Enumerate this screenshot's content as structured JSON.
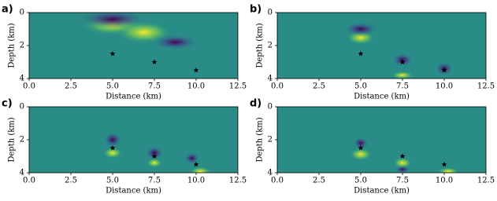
{
  "chart_data": [
    {
      "type": "scatter",
      "panel_label": "a)",
      "xlabel": "Distance (km)",
      "ylabel": "Depth (km)",
      "xlim": [
        0,
        12.5
      ],
      "ylim": [
        0,
        4
      ],
      "y_inverted": true,
      "xticks": [
        {
          "value": 0,
          "label": "0.0"
        },
        {
          "value": 2.5,
          "label": "2.5"
        },
        {
          "value": 5,
          "label": "5.0"
        },
        {
          "value": 7.5,
          "label": "7.5"
        },
        {
          "value": 10,
          "label": "10.0"
        },
        {
          "value": 12.5,
          "label": "12.5"
        }
      ],
      "yticks": [
        0,
        2,
        4
      ],
      "marker": "star",
      "series": [
        {
          "color": "#000000",
          "x": [
            5,
            7.5,
            10
          ],
          "values": [
            2.5,
            3,
            3.5
          ]
        }
      ]
    },
    {
      "type": "scatter",
      "panel_label": "b)",
      "xlabel": "Distance (km)",
      "ylabel": "Depth (km)",
      "xlim": [
        0,
        12.5
      ],
      "ylim": [
        0,
        4
      ],
      "y_inverted": true,
      "xticks": [
        {
          "value": 0,
          "label": "0.0"
        },
        {
          "value": 2.5,
          "label": "2.5"
        },
        {
          "value": 5,
          "label": "5.0"
        },
        {
          "value": 7.5,
          "label": "7.5"
        },
        {
          "value": 10,
          "label": "10.0"
        },
        {
          "value": 12.5,
          "label": "12.5"
        }
      ],
      "yticks": [
        0,
        2,
        4
      ],
      "marker": "star",
      "series": [
        {
          "color": "#000000",
          "x": [
            5,
            7.5,
            10
          ],
          "values": [
            2.5,
            3,
            3.5
          ]
        }
      ]
    },
    {
      "type": "scatter",
      "panel_label": "c)",
      "xlabel": "Distance (km)",
      "ylabel": "Depth (km)",
      "xlim": [
        0,
        12.5
      ],
      "ylim": [
        0,
        4
      ],
      "y_inverted": true,
      "xticks": [
        {
          "value": 0,
          "label": "0.0"
        },
        {
          "value": 2.5,
          "label": "2.5"
        },
        {
          "value": 5,
          "label": "5.0"
        },
        {
          "value": 7.5,
          "label": "7.5"
        },
        {
          "value": 10,
          "label": "10.0"
        },
        {
          "value": 12.5,
          "label": "12.5"
        }
      ],
      "yticks": [
        0,
        2,
        4
      ],
      "marker": "star",
      "series": [
        {
          "color": "#000000",
          "x": [
            5,
            7.5,
            10
          ],
          "values": [
            2.5,
            3,
            3.5
          ]
        }
      ]
    },
    {
      "type": "scatter",
      "panel_label": "d)",
      "xlabel": "Distance (km)",
      "ylabel": "Depth (km)",
      "xlim": [
        0,
        12.5
      ],
      "ylim": [
        0,
        4
      ],
      "y_inverted": true,
      "xticks": [
        {
          "value": 0,
          "label": "0.0"
        },
        {
          "value": 2.5,
          "label": "2.5"
        },
        {
          "value": 5,
          "label": "5.0"
        },
        {
          "value": 7.5,
          "label": "7.5"
        },
        {
          "value": 10,
          "label": "10.0"
        },
        {
          "value": 12.5,
          "label": "12.5"
        }
      ],
      "yticks": [
        0,
        2,
        4
      ],
      "marker": "star",
      "series": [
        {
          "color": "#000000",
          "x": [
            5,
            7.5,
            10
          ],
          "values": [
            2.5,
            3,
            3.5
          ]
        }
      ]
    }
  ]
}
